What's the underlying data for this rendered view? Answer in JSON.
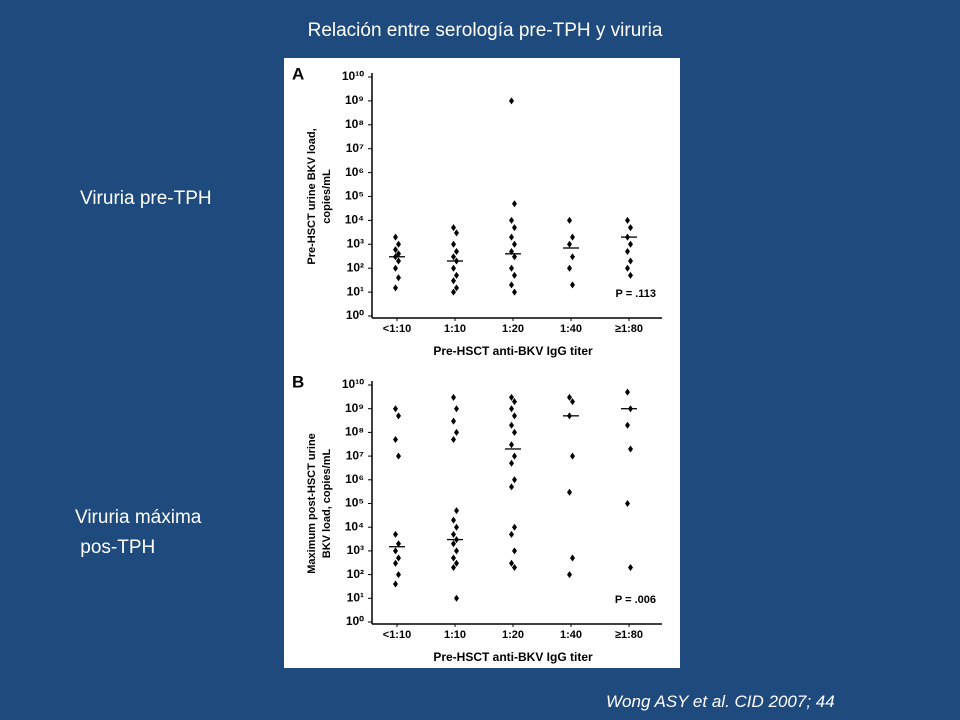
{
  "slide": {
    "title": "Relación entre serología pre-TPH y viruria",
    "labels": [
      "Viruria pre-TPH",
      "Viruria máxima",
      " pos-TPH"
    ],
    "citation": "Wong ASY et al. CID 2007; 44"
  },
  "chart_data": [
    {
      "type": "scatter",
      "panel": "A",
      "log_scale": true,
      "ylabel": [
        "Pre-HSCT urine BKV load,",
        "copies/mL"
      ],
      "xlabel": "Pre-HSCT anti-BKV IgG titer",
      "categories": [
        "<1:10",
        "1:10",
        "1:20",
        "1:40",
        "≥1:80"
      ],
      "points": [
        [
          2000,
          1000,
          600,
          400,
          300,
          200,
          100,
          40,
          15
        ],
        [
          5000,
          3000,
          1000,
          500,
          300,
          200,
          100,
          50,
          30,
          15,
          10
        ],
        [
          1000000000,
          50000,
          10000,
          5000,
          2000,
          1000,
          500,
          300,
          100,
          50,
          20,
          10
        ],
        [
          10000,
          2000,
          1000,
          300,
          100,
          20
        ],
        [
          10000,
          5000,
          2000,
          1000,
          500,
          200,
          100,
          50
        ]
      ],
      "medians": [
        300,
        200,
        400,
        700,
        2000
      ],
      "color": "#000000",
      "ylim": [
        1,
        10000000000
      ],
      "yticks": [
        {
          "value": 1,
          "label": "10⁰"
        },
        {
          "value": 10,
          "label": "10¹"
        },
        {
          "value": 100,
          "label": "10²"
        },
        {
          "value": 1000,
          "label": "10³"
        },
        {
          "value": 10000,
          "label": "10⁴"
        },
        {
          "value": 100000,
          "label": "10⁵"
        },
        {
          "value": 1000000,
          "label": "10⁶"
        },
        {
          "value": 10000000,
          "label": "10⁷"
        },
        {
          "value": 100000000,
          "label": "10⁸"
        },
        {
          "value": 1000000000,
          "label": "10⁹"
        },
        {
          "value": 10000000000,
          "label": "10¹⁰"
        }
      ],
      "annotation": "P = .113"
    },
    {
      "type": "scatter",
      "panel": "B",
      "log_scale": true,
      "ylabel": [
        "Maximum post-HSCT urine",
        "BKV load, copies/mL"
      ],
      "xlabel": "Pre-HSCT anti-BKV IgG titer",
      "categories": [
        "<1:10",
        "1:10",
        "1:20",
        "1:40",
        "≥1:80"
      ],
      "points": [
        [
          1000000000,
          500000000,
          50000000,
          10000000,
          5000,
          2000,
          1000,
          500,
          300,
          100,
          40
        ],
        [
          3000000000,
          1000000000,
          300000000,
          100000000,
          50000000,
          50000,
          20000,
          10000,
          5000,
          3000,
          2000,
          1000,
          500,
          300,
          200,
          10
        ],
        [
          3000000000,
          2000000000,
          1000000000,
          500000000,
          200000000,
          100000000,
          30000000,
          10000000,
          5000000,
          1000000,
          500000,
          10000,
          5000,
          1000,
          300,
          200
        ],
        [
          3000000000,
          2000000000,
          500000000,
          10000000,
          300000,
          500,
          100
        ],
        [
          5000000000,
          1000000000,
          200000000,
          20000000,
          100000,
          200
        ]
      ],
      "medians": [
        1500,
        3000,
        20000000,
        500000000,
        1000000000
      ],
      "color": "#000000",
      "ylim": [
        1,
        10000000000
      ],
      "yticks": [
        {
          "value": 1,
          "label": "10⁰"
        },
        {
          "value": 10,
          "label": "10¹"
        },
        {
          "value": 100,
          "label": "10²"
        },
        {
          "value": 1000,
          "label": "10³"
        },
        {
          "value": 10000,
          "label": "10⁴"
        },
        {
          "value": 100000,
          "label": "10⁵"
        },
        {
          "value": 1000000,
          "label": "10⁶"
        },
        {
          "value": 10000000,
          "label": "10⁷"
        },
        {
          "value": 100000000,
          "label": "10⁸"
        },
        {
          "value": 1000000000,
          "label": "10⁹"
        },
        {
          "value": 10000000000,
          "label": "10¹⁰"
        }
      ],
      "annotation": "P = .006"
    }
  ]
}
